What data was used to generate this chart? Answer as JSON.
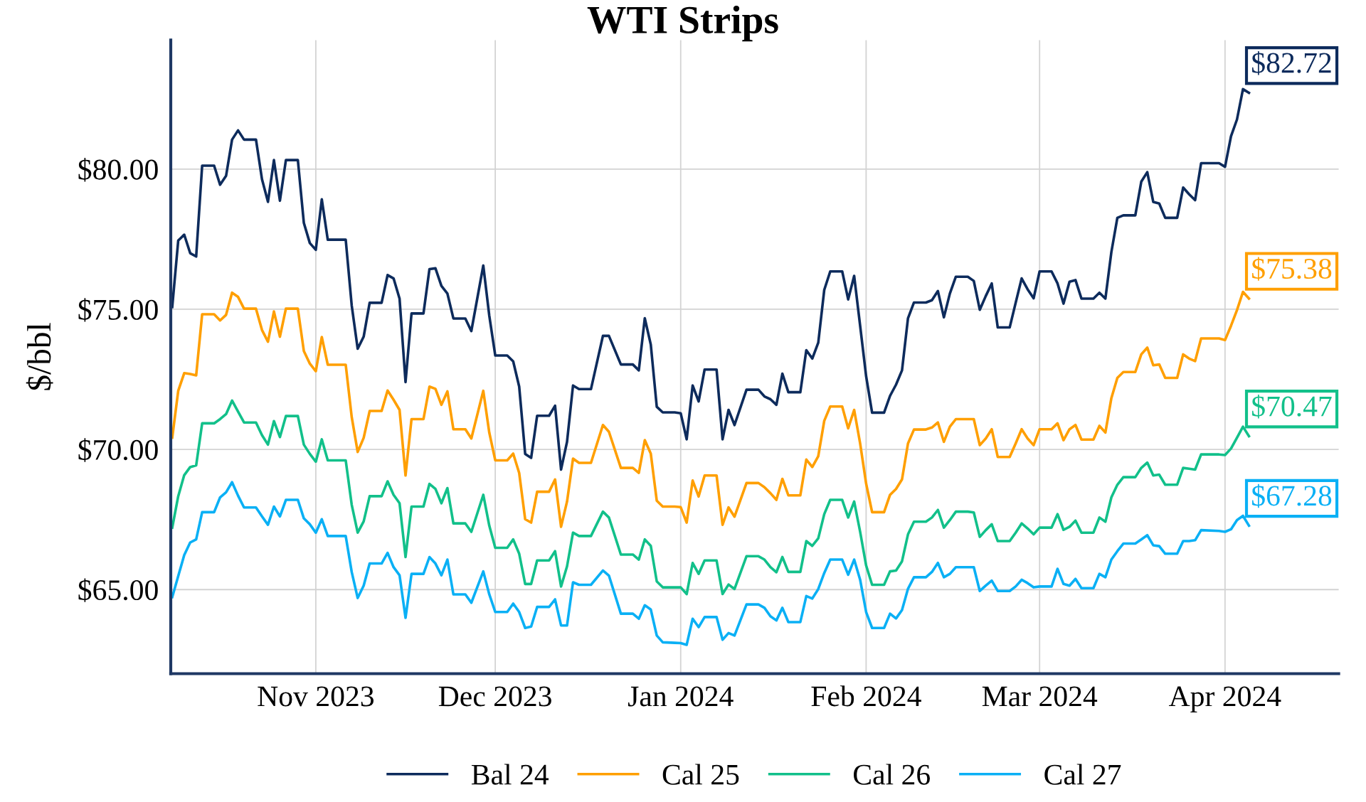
{
  "chart_data": {
    "type": "line",
    "title": "WTI Strips",
    "ylabel": "$/bbl",
    "x": [
      "2023-10-08",
      "2023-10-09",
      "2023-10-10",
      "2023-10-11",
      "2023-10-12",
      "2023-10-13",
      "2023-10-15",
      "2023-10-16",
      "2023-10-17",
      "2023-10-18",
      "2023-10-19",
      "2023-10-20",
      "2023-10-22",
      "2023-10-23",
      "2023-10-24",
      "2023-10-25",
      "2023-10-26",
      "2023-10-27",
      "2023-10-29",
      "2023-10-30",
      "2023-10-31",
      "2023-11-01",
      "2023-11-02",
      "2023-11-03",
      "2023-11-06",
      "2023-11-07",
      "2023-11-08",
      "2023-11-09",
      "2023-11-10",
      "2023-11-12",
      "2023-11-13",
      "2023-11-14",
      "2023-11-15",
      "2023-11-16",
      "2023-11-17",
      "2023-11-19",
      "2023-11-20",
      "2023-11-21",
      "2023-11-22",
      "2023-11-23",
      "2023-11-24",
      "2023-11-26",
      "2023-11-27",
      "2023-11-29",
      "2023-11-30",
      "2023-12-01",
      "2023-12-03",
      "2023-12-04",
      "2023-12-05",
      "2023-12-06",
      "2023-12-07",
      "2023-12-08",
      "2023-12-10",
      "2023-12-11",
      "2023-12-12",
      "2023-12-13",
      "2023-12-14",
      "2023-12-15",
      "2023-12-17",
      "2023-12-19",
      "2023-12-20",
      "2023-12-22",
      "2023-12-24",
      "2023-12-25",
      "2023-12-26",
      "2023-12-27",
      "2023-12-28",
      "2023-12-29",
      "2023-12-31",
      "2024-01-01",
      "2024-01-02",
      "2024-01-03",
      "2024-01-04",
      "2024-01-05",
      "2024-01-07",
      "2024-01-08",
      "2024-01-09",
      "2024-01-10",
      "2024-01-12",
      "2024-01-14",
      "2024-01-15",
      "2024-01-16",
      "2024-01-17",
      "2024-01-18",
      "2024-01-19",
      "2024-01-21",
      "2024-01-22",
      "2024-01-23",
      "2024-01-24",
      "2024-01-25",
      "2024-01-26",
      "2024-01-28",
      "2024-01-29",
      "2024-01-30",
      "2024-01-31",
      "2024-02-01",
      "2024-02-02",
      "2024-02-04",
      "2024-02-05",
      "2024-02-06",
      "2024-02-07",
      "2024-02-08",
      "2024-02-09",
      "2024-02-11",
      "2024-02-12",
      "2024-02-13",
      "2024-02-14",
      "2024-02-15",
      "2024-02-16",
      "2024-02-18",
      "2024-02-19",
      "2024-02-20",
      "2024-02-21",
      "2024-02-22",
      "2024-02-23",
      "2024-02-25",
      "2024-02-26",
      "2024-02-27",
      "2024-02-28",
      "2024-02-29",
      "2024-03-01",
      "2024-03-03",
      "2024-03-04",
      "2024-03-05",
      "2024-03-06",
      "2024-03-07",
      "2024-03-08",
      "2024-03-10",
      "2024-03-11",
      "2024-03-12",
      "2024-03-13",
      "2024-03-14",
      "2024-03-15",
      "2024-03-17",
      "2024-03-18",
      "2024-03-19",
      "2024-03-20",
      "2024-03-21",
      "2024-03-22",
      "2024-03-24",
      "2024-03-25",
      "2024-03-26",
      "2024-03-27",
      "2024-03-28",
      "2024-03-31",
      "2024-04-01",
      "2024-04-02",
      "2024-04-03",
      "2024-04-04",
      "2024-04-05"
    ],
    "series": [
      {
        "name": "Bal 24",
        "color": "#0d2b5c",
        "values": [
          75.08,
          77.45,
          77.66,
          77.0,
          76.88,
          80.12,
          80.12,
          79.44,
          79.76,
          81.05,
          81.38,
          81.05,
          81.05,
          79.64,
          78.83,
          80.32,
          78.87,
          80.32,
          80.32,
          78.08,
          77.36,
          77.12,
          78.92,
          77.48,
          77.48,
          75.14,
          73.59,
          74.02,
          75.23,
          75.23,
          76.22,
          76.1,
          75.38,
          72.4,
          74.85,
          74.85,
          76.43,
          76.46,
          75.83,
          75.56,
          74.67,
          74.67,
          74.22,
          76.56,
          74.77,
          73.35,
          73.35,
          73.14,
          72.24,
          69.84,
          69.7,
          71.2,
          71.2,
          71.56,
          69.28,
          70.27,
          72.28,
          72.15,
          72.15,
          74.05,
          74.05,
          73.03,
          73.03,
          72.82,
          74.68,
          73.74,
          71.52,
          71.32,
          71.32,
          71.29,
          70.36,
          72.28,
          71.71,
          72.85,
          72.85,
          70.36,
          71.41,
          70.87,
          72.13,
          72.13,
          71.89,
          71.79,
          71.59,
          72.7,
          72.04,
          72.04,
          73.54,
          73.24,
          73.81,
          75.69,
          76.35,
          76.35,
          75.35,
          76.19,
          74.41,
          72.61,
          71.31,
          71.31,
          71.91,
          72.31,
          72.82,
          74.68,
          75.24,
          75.24,
          75.32,
          75.65,
          74.71,
          75.56,
          76.16,
          76.16,
          76.01,
          74.98,
          75.47,
          75.92,
          74.35,
          74.35,
          75.23,
          76.1,
          75.71,
          75.39,
          76.35,
          76.35,
          75.92,
          75.2,
          75.98,
          76.04,
          75.38,
          75.38,
          75.59,
          75.38,
          77.04,
          78.26,
          78.35,
          78.35,
          79.55,
          79.89,
          78.83,
          78.77,
          78.26,
          78.26,
          79.34,
          79.1,
          78.89,
          80.21,
          80.21,
          80.08,
          81.17,
          81.77,
          82.85,
          82.72
        ]
      },
      {
        "name": "Cal 25",
        "color": "#ff9f00",
        "values": [
          70.42,
          72.09,
          72.72,
          72.69,
          72.64,
          74.82,
          74.82,
          74.6,
          74.8,
          75.59,
          75.44,
          75.02,
          75.02,
          74.26,
          73.84,
          74.92,
          74.02,
          75.02,
          75.02,
          73.51,
          73.06,
          72.79,
          74.01,
          73.02,
          73.02,
          71.16,
          69.91,
          70.41,
          71.37,
          71.37,
          72.1,
          71.77,
          71.41,
          69.07,
          71.08,
          71.08,
          72.24,
          72.16,
          71.59,
          72.07,
          70.72,
          70.72,
          70.39,
          72.09,
          70.6,
          69.61,
          69.61,
          69.85,
          69.16,
          67.51,
          67.39,
          68.49,
          68.49,
          68.93,
          67.24,
          68.14,
          69.67,
          69.52,
          69.52,
          70.87,
          70.63,
          69.34,
          69.34,
          69.16,
          70.33,
          69.85,
          68.17,
          67.96,
          67.96,
          67.94,
          67.39,
          68.89,
          68.32,
          69.07,
          69.07,
          67.31,
          67.93,
          67.6,
          68.8,
          68.8,
          68.65,
          68.44,
          68.2,
          68.95,
          68.36,
          68.36,
          69.64,
          69.37,
          69.76,
          71.02,
          71.53,
          71.53,
          70.75,
          71.41,
          70.21,
          68.78,
          67.76,
          67.76,
          68.38,
          68.59,
          68.93,
          70.21,
          70.71,
          70.71,
          70.78,
          70.96,
          70.27,
          70.81,
          71.08,
          71.08,
          71.08,
          70.15,
          70.39,
          70.72,
          69.73,
          69.73,
          70.21,
          70.72,
          70.39,
          70.15,
          70.72,
          70.72,
          70.93,
          70.33,
          70.72,
          70.87,
          70.35,
          70.35,
          70.84,
          70.6,
          71.83,
          72.55,
          72.76,
          72.76,
          73.39,
          73.63,
          73.0,
          73.03,
          72.55,
          72.55,
          73.39,
          73.24,
          73.15,
          73.96,
          73.96,
          73.9,
          74.41,
          74.97,
          75.62,
          75.38
        ]
      },
      {
        "name": "Cal 26",
        "color": "#12c08a",
        "values": [
          67.21,
          68.33,
          69.08,
          69.37,
          69.43,
          70.93,
          70.93,
          71.08,
          71.26,
          71.74,
          71.35,
          70.96,
          70.96,
          70.51,
          70.17,
          71.01,
          70.44,
          71.19,
          71.19,
          70.17,
          69.84,
          69.56,
          70.36,
          69.61,
          69.61,
          68.03,
          67.03,
          67.43,
          68.33,
          68.33,
          68.86,
          68.38,
          68.08,
          66.16,
          67.96,
          67.96,
          68.77,
          68.59,
          68.08,
          68.62,
          67.36,
          67.36,
          67.06,
          68.38,
          67.28,
          66.49,
          66.49,
          66.79,
          66.28,
          65.2,
          65.2,
          66.04,
          66.04,
          66.37,
          65.11,
          65.83,
          67.03,
          66.91,
          66.91,
          67.78,
          67.57,
          66.25,
          66.25,
          66.07,
          66.79,
          66.56,
          65.29,
          65.08,
          65.08,
          65.08,
          64.84,
          65.95,
          65.56,
          66.04,
          66.04,
          64.84,
          65.18,
          65.02,
          66.19,
          66.19,
          66.07,
          65.8,
          65.62,
          66.16,
          65.63,
          65.63,
          66.73,
          66.56,
          66.83,
          67.69,
          68.2,
          68.2,
          67.57,
          68.14,
          67.06,
          65.86,
          65.17,
          65.17,
          65.65,
          65.68,
          66.01,
          66.97,
          67.42,
          67.42,
          67.57,
          67.84,
          67.21,
          67.48,
          67.78,
          67.78,
          67.75,
          66.88,
          67.12,
          67.33,
          66.73,
          66.73,
          67.03,
          67.36,
          67.18,
          66.97,
          67.21,
          67.21,
          67.69,
          67.13,
          67.24,
          67.46,
          67.03,
          67.03,
          67.57,
          67.42,
          68.29,
          68.74,
          69.01,
          69.01,
          69.34,
          69.53,
          69.07,
          69.1,
          68.74,
          68.74,
          69.34,
          69.31,
          69.28,
          69.82,
          69.82,
          69.8,
          70.03,
          70.42,
          70.81,
          70.47
        ]
      },
      {
        "name": "Cal 27",
        "color": "#0ab0f5",
        "values": [
          64.73,
          65.48,
          66.23,
          66.68,
          66.79,
          67.76,
          67.76,
          68.29,
          68.47,
          68.83,
          68.35,
          67.93,
          67.93,
          67.61,
          67.31,
          67.96,
          67.61,
          68.2,
          68.2,
          67.54,
          67.33,
          67.03,
          67.51,
          66.91,
          66.91,
          65.63,
          64.7,
          65.14,
          65.93,
          65.93,
          66.31,
          65.8,
          65.51,
          63.99,
          65.56,
          65.56,
          66.16,
          65.93,
          65.51,
          66.07,
          64.83,
          64.83,
          64.53,
          65.65,
          64.83,
          64.2,
          64.2,
          64.5,
          64.2,
          63.63,
          63.68,
          64.38,
          64.38,
          64.65,
          63.72,
          63.72,
          65.26,
          65.17,
          65.17,
          65.68,
          65.5,
          64.14,
          64.14,
          63.96,
          64.44,
          64.29,
          63.36,
          63.12,
          63.1,
          63.09,
          63.03,
          63.96,
          63.66,
          64.02,
          64.02,
          63.21,
          63.45,
          63.36,
          64.47,
          64.47,
          64.35,
          64.05,
          63.9,
          64.35,
          63.84,
          63.84,
          64.77,
          64.68,
          65.02,
          65.59,
          66.07,
          66.07,
          65.53,
          66.07,
          65.35,
          64.2,
          63.63,
          63.63,
          64.14,
          63.97,
          64.27,
          65.03,
          65.44,
          65.44,
          65.63,
          65.95,
          65.44,
          65.56,
          65.8,
          65.8,
          65.8,
          64.95,
          65.14,
          65.32,
          64.95,
          64.95,
          65.11,
          65.35,
          65.23,
          65.08,
          65.11,
          65.11,
          65.74,
          65.2,
          65.14,
          65.38,
          65.05,
          65.05,
          65.56,
          65.44,
          66.07,
          66.37,
          66.64,
          66.64,
          66.79,
          66.94,
          66.58,
          66.55,
          66.28,
          66.28,
          66.73,
          66.73,
          66.76,
          67.12,
          67.09,
          67.06,
          67.15,
          67.48,
          67.63,
          67.28
        ]
      }
    ],
    "xlim": [
      "2023-10-07T18:00",
      "2024-04-20"
    ],
    "xticks": [
      {
        "value": "2023-11-01",
        "label": "Nov 2023"
      },
      {
        "value": "2023-12-01",
        "label": "Dec 2023"
      },
      {
        "value": "2024-01-01",
        "label": "Jan 2024"
      },
      {
        "value": "2024-02-01",
        "label": "Feb 2024"
      },
      {
        "value": "2024-03-01",
        "label": "Mar 2024"
      },
      {
        "value": "2024-04-01",
        "label": "Apr 2024"
      }
    ],
    "ylim": [
      62,
      84.6
    ],
    "yticks": [
      {
        "value": 65,
        "label": "$65.00"
      },
      {
        "value": 70,
        "label": "$70.00"
      },
      {
        "value": 75,
        "label": "$75.00"
      },
      {
        "value": 80,
        "label": "$80.00"
      }
    ],
    "annotations": [
      {
        "text": "$82.72",
        "x": "2024-04-05",
        "y": 82.72
      },
      {
        "text": "$75.38",
        "x": "2024-04-05",
        "y": 75.38
      },
      {
        "text": "$70.47",
        "x": "2024-04-05",
        "y": 70.47
      },
      {
        "text": "$67.28",
        "x": "2024-04-05",
        "y": 67.28
      }
    ],
    "grid": true,
    "legend": "bottom",
    "marker": "none",
    "line_style": "solid"
  }
}
